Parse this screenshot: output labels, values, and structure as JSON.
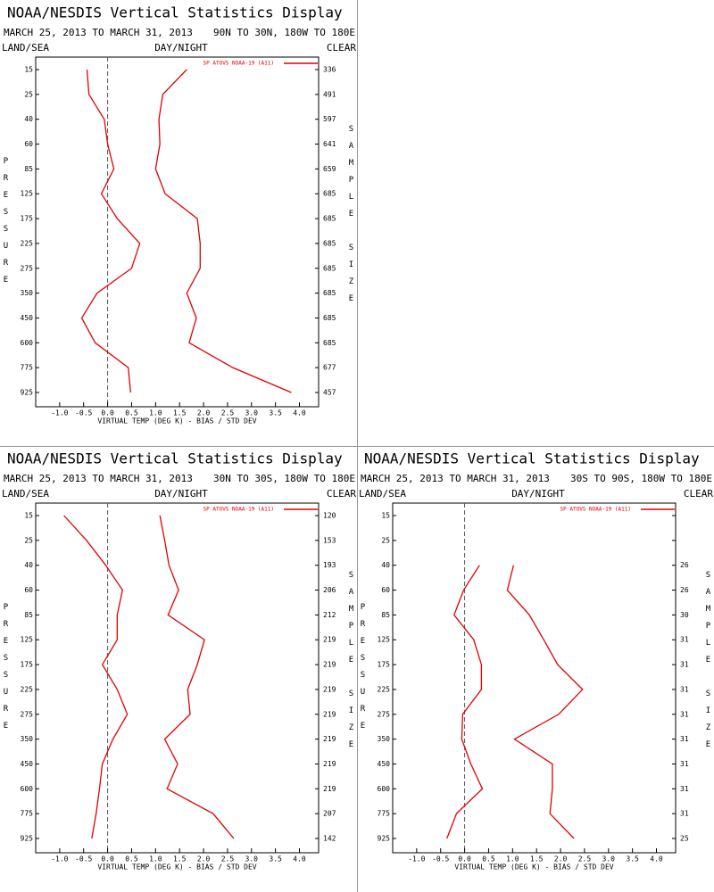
{
  "chart_data": [
    {
      "type": "line",
      "orientation": "horizontal",
      "title": "NOAA/NESDIS Vertical Statistics Display",
      "subtitle": "MARCH 25, 2013 TO MARCH 31, 2013",
      "region": "90N TO 30N, 180W TO 180E",
      "land_sea": "LAND/SEA",
      "day_night": "DAY/NIGHT",
      "clear": "CLEAR",
      "y_label": "PRESSURE",
      "y2_label": "SAMPLE SIZE",
      "x_label": "VIRTUAL TEMP (DEG K) - BIAS / STD DEV",
      "categories": [
        15,
        25,
        40,
        60,
        85,
        125,
        175,
        225,
        275,
        350,
        450,
        600,
        775,
        925
      ],
      "series": [
        {
          "name": "SP ATOVS NOAA-19 (A11)",
          "color": "#e00000",
          "values": [
            -0.43,
            -0.39,
            -0.07,
            0.0,
            0.13,
            -0.13,
            0.2,
            0.67,
            0.5,
            -0.22,
            -0.54,
            -0.26,
            0.43,
            0.48
          ]
        },
        {
          "color": "#e00000",
          "values": [
            1.65,
            1.15,
            1.07,
            1.09,
            1.0,
            1.2,
            1.87,
            1.93,
            1.93,
            1.65,
            1.85,
            1.7,
            2.61,
            3.83
          ]
        }
      ],
      "sample_sizes": [
        336,
        491,
        597,
        641,
        659,
        685,
        685,
        685,
        685,
        685,
        685,
        685,
        677,
        457
      ],
      "xlim": [
        -1.5,
        4.4
      ],
      "xticks": [
        {
          "value": -1,
          "label": "-1.0"
        },
        -0.5,
        {
          "value": 0,
          "label": "0.0"
        },
        0.5,
        {
          "value": 1,
          "label": "1.0"
        },
        1.5,
        {
          "value": 2,
          "label": "2.0"
        },
        2.5,
        {
          "value": 3,
          "label": "3.0"
        },
        3.5,
        {
          "value": 4,
          "label": "4.0"
        }
      ]
    },
    {
      "type": "line",
      "orientation": "horizontal",
      "title": "NOAA/NESDIS Vertical Statistics Display",
      "subtitle": "MARCH 25, 2013 TO MARCH 31, 2013",
      "region": "30N TO 30S, 180W TO 180E",
      "land_sea": "LAND/SEA",
      "day_night": "DAY/NIGHT",
      "clear": "CLEAR",
      "y_label": "PRESSURE",
      "y2_label": "SAMPLE SIZE",
      "x_label": "VIRTUAL TEMP (DEG K) - BIAS / STD DEV",
      "categories": [
        15,
        25,
        40,
        60,
        85,
        125,
        175,
        225,
        275,
        350,
        450,
        600,
        775,
        925
      ],
      "series": [
        {
          "name": "SP ATOVS NOAA-19 (A11)",
          "color": "#e00000",
          "values": [
            -0.91,
            -0.44,
            -0.04,
            0.31,
            0.2,
            0.2,
            -0.11,
            0.2,
            0.41,
            0.11,
            -0.11,
            -0.17,
            -0.24,
            -0.33
          ]
        },
        {
          "color": "#e00000",
          "values": [
            1.09,
            1.19,
            1.28,
            1.48,
            1.26,
            2.02,
            1.87,
            1.67,
            1.72,
            1.19,
            1.46,
            1.24,
            2.2,
            2.63
          ]
        }
      ],
      "sample_sizes": [
        120,
        153,
        193,
        206,
        212,
        219,
        219,
        219,
        219,
        219,
        219,
        219,
        207,
        142
      ],
      "xlim": [
        -1.5,
        4.4
      ],
      "xticks": [
        {
          "value": -1,
          "label": "-1.0"
        },
        -0.5,
        {
          "value": 0,
          "label": "0.0"
        },
        0.5,
        {
          "value": 1,
          "label": "1.0"
        },
        1.5,
        {
          "value": 2,
          "label": "2.0"
        },
        2.5,
        {
          "value": 3,
          "label": "3.0"
        },
        3.5,
        {
          "value": 4,
          "label": "4.0"
        }
      ]
    },
    {
      "type": "line",
      "orientation": "horizontal",
      "title": "NOAA/NESDIS Vertical Statistics Display",
      "subtitle": "MARCH 25, 2013 TO MARCH 31, 2013",
      "region": "30S TO 90S, 180W TO 180E",
      "land_sea": "LAND/SEA",
      "day_night": "DAY/NIGHT",
      "clear": "CLEAR",
      "y_label": "PRESSURE",
      "y2_label": "SAMPLE SIZE",
      "x_label": "VIRTUAL TEMP (DEG K) - BIAS / STD DEV",
      "categories": [
        15,
        25,
        40,
        60,
        85,
        125,
        175,
        225,
        275,
        350,
        450,
        600,
        775,
        925
      ],
      "series": [
        {
          "name": "SP ATOVS NOAA-19 (A11)",
          "color": "#e00000",
          "values": [
            null,
            null,
            0.31,
            -0.02,
            -0.22,
            0.19,
            0.35,
            0.35,
            -0.04,
            -0.06,
            0.13,
            0.37,
            -0.17,
            -0.37
          ]
        },
        {
          "color": "#e00000",
          "values": [
            null,
            null,
            1.02,
            0.89,
            1.35,
            1.65,
            1.94,
            2.46,
            1.96,
            1.04,
            1.83,
            1.83,
            1.78,
            2.28
          ]
        }
      ],
      "sample_sizes": [
        null,
        null,
        26,
        26,
        30,
        31,
        31,
        31,
        31,
        31,
        31,
        31,
        31,
        25
      ],
      "xlim": [
        -1.5,
        4.4
      ],
      "xticks": [
        {
          "value": -1,
          "label": "-1.0"
        },
        -0.5,
        {
          "value": 0,
          "label": "0.0"
        },
        0.5,
        {
          "value": 1,
          "label": "1.0"
        },
        1.5,
        {
          "value": 2,
          "label": "2.0"
        },
        2.5,
        {
          "value": 3,
          "label": "3.0"
        },
        3.5,
        {
          "value": 4,
          "label": "4.0"
        }
      ]
    }
  ]
}
